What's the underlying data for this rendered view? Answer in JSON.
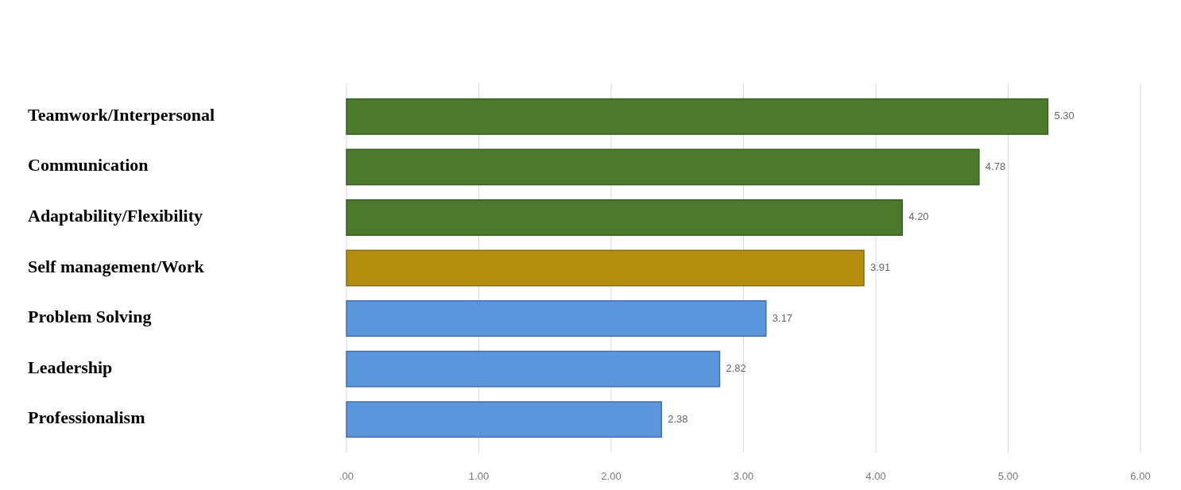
{
  "chart_data": {
    "type": "bar",
    "orientation": "horizontal",
    "categories": [
      "Teamwork/Interpersonal",
      "Communication",
      "Adaptability/Flexibility",
      "Self management/Work",
      "Problem Solving",
      "Leadership",
      "Professionalism"
    ],
    "values": [
      5.3,
      4.78,
      4.2,
      3.91,
      3.17,
      2.82,
      2.38
    ],
    "colors": [
      "#4b7a2c",
      "#4b7a2c",
      "#4b7a2c",
      "#b58d0c",
      "#5b95dc",
      "#5b95dc",
      "#5b95dc"
    ],
    "value_labels": [
      "5.30",
      "4.78",
      "4.20",
      "3.91",
      "3.17",
      "2.82",
      "2.38"
    ],
    "xlim": [
      0,
      6
    ],
    "xticks": [
      {
        "value": 0,
        "label": ".00"
      },
      {
        "value": 1,
        "label": "1.00"
      },
      {
        "value": 2,
        "label": "2.00"
      },
      {
        "value": 3,
        "label": "3.00"
      },
      {
        "value": 4,
        "label": "4.00"
      },
      {
        "value": 5,
        "label": "5.00"
      },
      {
        "value": 6,
        "label": "6.00"
      }
    ],
    "grid": "x"
  }
}
